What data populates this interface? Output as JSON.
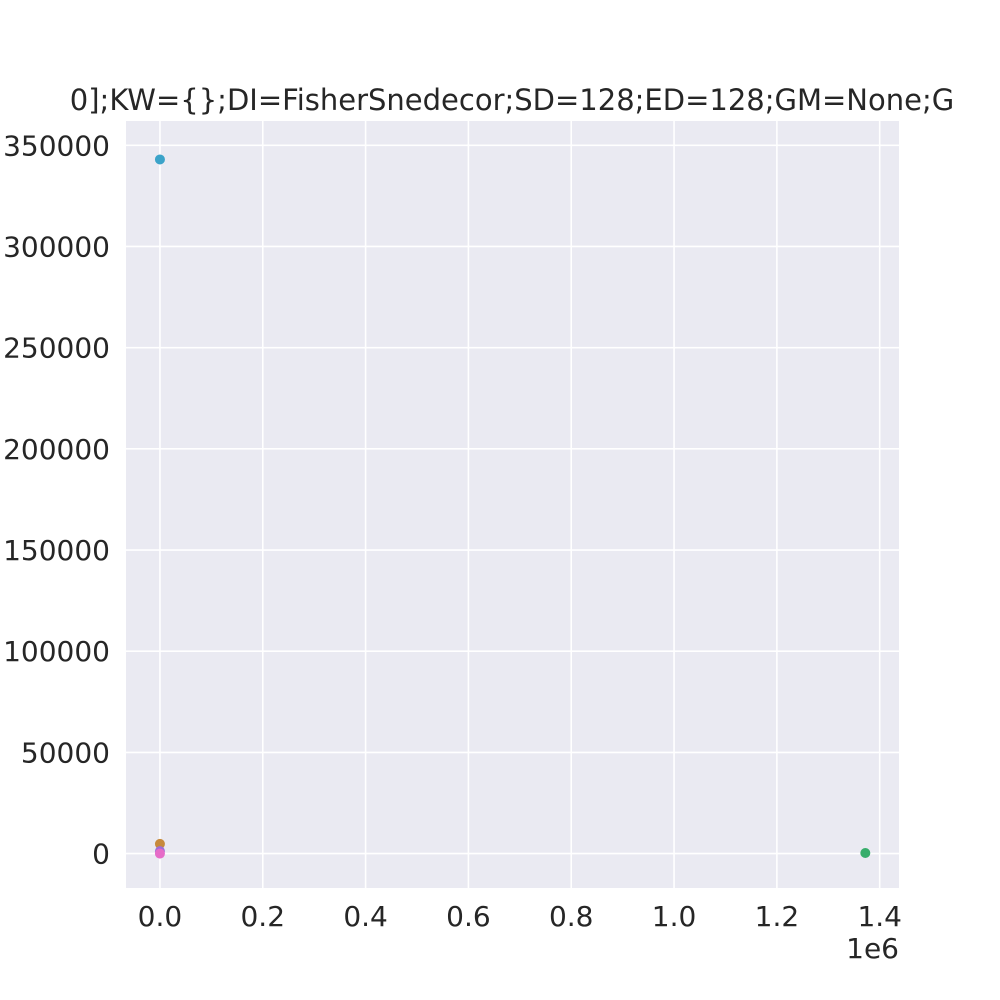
{
  "chart_data": {
    "type": "scatter",
    "title": "0];KW={};DI=FisherSnedecor;SD=128;ED=128;GM=None;G",
    "xlabel": "",
    "ylabel": "",
    "x_offset_label": "1e6",
    "xlim": [
      -0.066,
      1.4375
    ],
    "ylim": [
      -17000,
      362000
    ],
    "x_ticks": [
      0.0,
      0.2,
      0.4,
      0.6,
      0.8,
      1.0,
      1.2,
      1.4
    ],
    "x_tick_labels": [
      "0.0",
      "0.2",
      "0.4",
      "0.6",
      "0.8",
      "1.0",
      "1.2",
      "1.4"
    ],
    "y_ticks": [
      0,
      50000,
      100000,
      150000,
      200000,
      250000,
      300000,
      350000
    ],
    "y_tick_labels": [
      "0",
      "50000",
      "100000",
      "150000",
      "200000",
      "250000",
      "300000",
      "350000"
    ],
    "grid": true,
    "background": "#eaeaf2",
    "series": [
      {
        "color": "#3ba3c9",
        "points": [
          {
            "x": 0.0,
            "y": 343000
          }
        ]
      },
      {
        "color": "#c78a3c",
        "points": [
          {
            "x": 0.0,
            "y": 4800
          }
        ]
      },
      {
        "color": "#37ad6b",
        "points": [
          {
            "x": 1.372,
            "y": 300
          }
        ]
      },
      {
        "color": "#9e6fd6",
        "points": [
          {
            "x": 0.0,
            "y": 1200
          }
        ]
      },
      {
        "color": "#e66cc8",
        "points": [
          {
            "x": 0.0,
            "y": 0
          }
        ]
      }
    ]
  }
}
